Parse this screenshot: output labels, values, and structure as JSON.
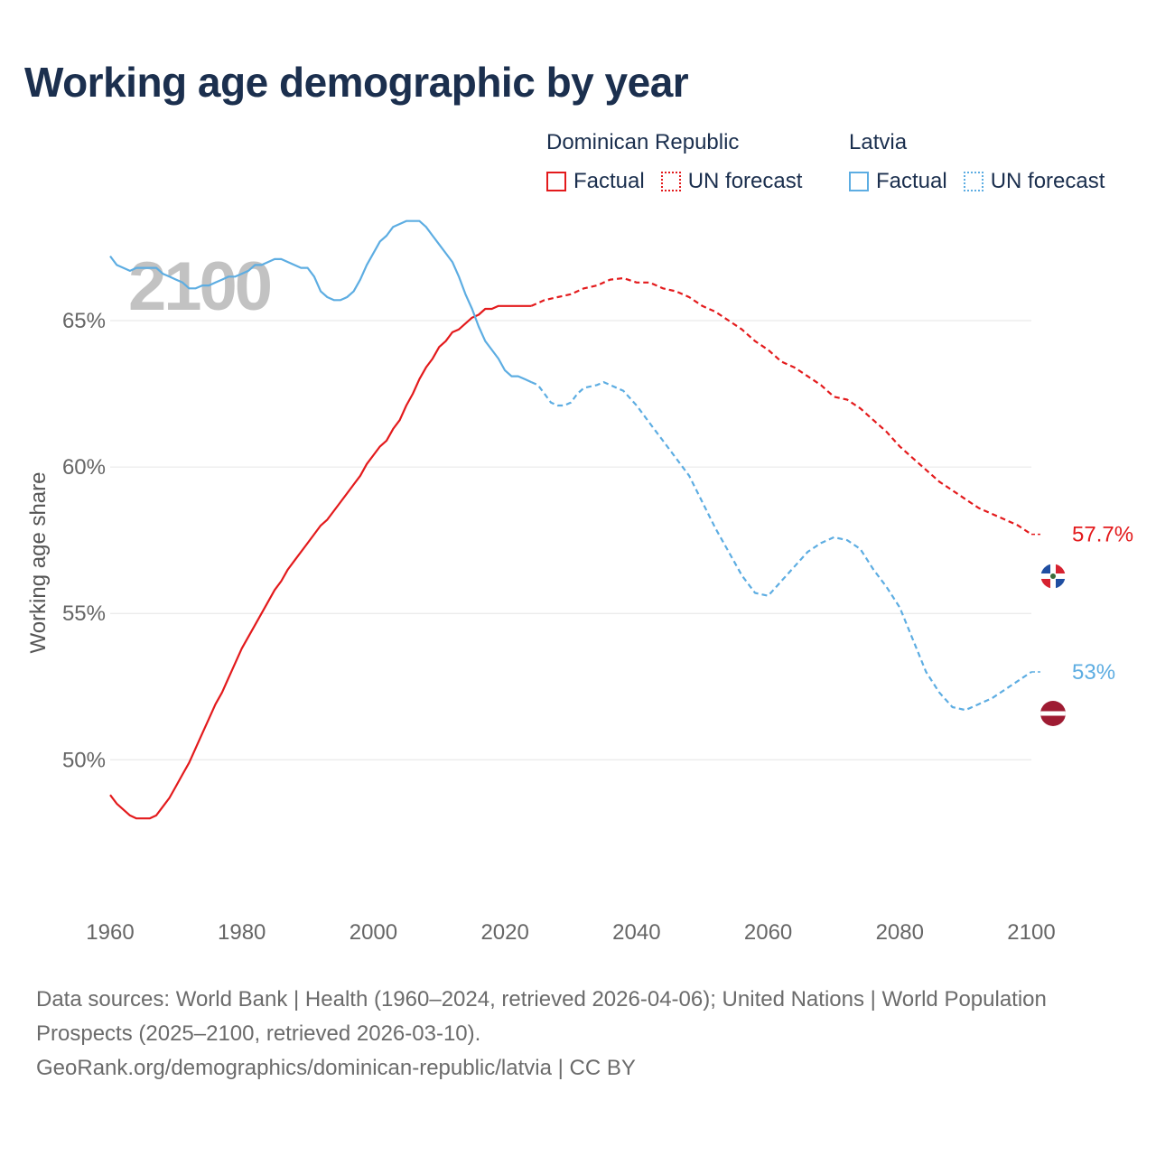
{
  "title": "Working age demographic by year",
  "legend": {
    "groups": [
      {
        "country": "Dominican Republic",
        "factual": "Factual",
        "forecast": "UN forecast",
        "color": "#e31a1c"
      },
      {
        "country": "Latvia",
        "factual": "Factual",
        "forecast": "UN forecast",
        "color": "#5dade2"
      }
    ]
  },
  "year_label": "2100",
  "chart_data": {
    "type": "line",
    "title": "Working age demographic by year",
    "xlabel": "",
    "ylabel": "Working age share",
    "xlim": [
      1960,
      2100
    ],
    "ylim": [
      46,
      68.5
    ],
    "x_ticks": [
      1960,
      1980,
      2000,
      2020,
      2040,
      2060,
      2080,
      2100
    ],
    "y_ticks": [
      50,
      55,
      60,
      65
    ],
    "y_tick_labels": [
      "50%",
      "55%",
      "60%",
      "65%"
    ],
    "factual_end_year": 2024,
    "series": [
      {
        "name": "Dominican Republic",
        "color": "#e31a1c",
        "end_label": "57.7%",
        "points": [
          [
            1960,
            48.8
          ],
          [
            1961,
            48.5
          ],
          [
            1962,
            48.3
          ],
          [
            1963,
            48.1
          ],
          [
            1964,
            48.0
          ],
          [
            1965,
            48.0
          ],
          [
            1966,
            48.0
          ],
          [
            1967,
            48.1
          ],
          [
            1968,
            48.4
          ],
          [
            1969,
            48.7
          ],
          [
            1970,
            49.1
          ],
          [
            1971,
            49.5
          ],
          [
            1972,
            49.9
          ],
          [
            1973,
            50.4
          ],
          [
            1974,
            50.9
          ],
          [
            1975,
            51.4
          ],
          [
            1976,
            51.9
          ],
          [
            1977,
            52.3
          ],
          [
            1978,
            52.8
          ],
          [
            1979,
            53.3
          ],
          [
            1980,
            53.8
          ],
          [
            1982,
            54.6
          ],
          [
            1984,
            55.4
          ],
          [
            1985,
            55.8
          ],
          [
            1986,
            56.1
          ],
          [
            1987,
            56.5
          ],
          [
            1988,
            56.8
          ],
          [
            1990,
            57.4
          ],
          [
            1992,
            58.0
          ],
          [
            1993,
            58.2
          ],
          [
            1995,
            58.8
          ],
          [
            1997,
            59.4
          ],
          [
            1998,
            59.7
          ],
          [
            1999,
            60.1
          ],
          [
            2000,
            60.4
          ],
          [
            2001,
            60.7
          ],
          [
            2002,
            60.9
          ],
          [
            2003,
            61.3
          ],
          [
            2004,
            61.6
          ],
          [
            2005,
            62.1
          ],
          [
            2006,
            62.5
          ],
          [
            2007,
            63.0
          ],
          [
            2008,
            63.4
          ],
          [
            2009,
            63.7
          ],
          [
            2010,
            64.1
          ],
          [
            2011,
            64.3
          ],
          [
            2012,
            64.6
          ],
          [
            2013,
            64.7
          ],
          [
            2014,
            64.9
          ],
          [
            2015,
            65.1
          ],
          [
            2016,
            65.2
          ],
          [
            2017,
            65.4
          ],
          [
            2018,
            65.4
          ],
          [
            2019,
            65.5
          ],
          [
            2020,
            65.5
          ],
          [
            2022,
            65.5
          ],
          [
            2024,
            65.5
          ],
          [
            2026,
            65.7
          ],
          [
            2028,
            65.8
          ],
          [
            2030,
            65.9
          ],
          [
            2032,
            66.1
          ],
          [
            2034,
            66.2
          ],
          [
            2036,
            66.4
          ],
          [
            2038,
            66.45
          ],
          [
            2040,
            66.3
          ],
          [
            2042,
            66.3
          ],
          [
            2044,
            66.1
          ],
          [
            2046,
            66.0
          ],
          [
            2048,
            65.8
          ],
          [
            2050,
            65.5
          ],
          [
            2052,
            65.3
          ],
          [
            2054,
            65.0
          ],
          [
            2056,
            64.7
          ],
          [
            2058,
            64.3
          ],
          [
            2060,
            64.0
          ],
          [
            2062,
            63.6
          ],
          [
            2064,
            63.4
          ],
          [
            2066,
            63.1
          ],
          [
            2068,
            62.8
          ],
          [
            2070,
            62.4
          ],
          [
            2072,
            62.3
          ],
          [
            2074,
            62.0
          ],
          [
            2076,
            61.6
          ],
          [
            2078,
            61.2
          ],
          [
            2080,
            60.7
          ],
          [
            2082,
            60.3
          ],
          [
            2084,
            59.9
          ],
          [
            2086,
            59.5
          ],
          [
            2088,
            59.2
          ],
          [
            2090,
            58.9
          ],
          [
            2092,
            58.6
          ],
          [
            2094,
            58.4
          ],
          [
            2096,
            58.2
          ],
          [
            2098,
            58.0
          ],
          [
            2100,
            57.7
          ]
        ]
      },
      {
        "name": "Latvia",
        "color": "#5dade2",
        "end_label": "53%",
        "points": [
          [
            1960,
            67.2
          ],
          [
            1961,
            66.9
          ],
          [
            1962,
            66.8
          ],
          [
            1963,
            66.7
          ],
          [
            1964,
            66.8
          ],
          [
            1965,
            66.8
          ],
          [
            1966,
            66.8
          ],
          [
            1967,
            66.8
          ],
          [
            1968,
            66.6
          ],
          [
            1969,
            66.5
          ],
          [
            1970,
            66.4
          ],
          [
            1971,
            66.3
          ],
          [
            1972,
            66.1
          ],
          [
            1973,
            66.1
          ],
          [
            1974,
            66.2
          ],
          [
            1975,
            66.2
          ],
          [
            1976,
            66.3
          ],
          [
            1977,
            66.4
          ],
          [
            1978,
            66.5
          ],
          [
            1979,
            66.5
          ],
          [
            1980,
            66.6
          ],
          [
            1981,
            66.7
          ],
          [
            1982,
            66.9
          ],
          [
            1983,
            66.9
          ],
          [
            1984,
            67.0
          ],
          [
            1985,
            67.1
          ],
          [
            1986,
            67.1
          ],
          [
            1987,
            67.0
          ],
          [
            1988,
            66.9
          ],
          [
            1989,
            66.8
          ],
          [
            1990,
            66.8
          ],
          [
            1991,
            66.5
          ],
          [
            1992,
            66.0
          ],
          [
            1993,
            65.8
          ],
          [
            1994,
            65.7
          ],
          [
            1995,
            65.7
          ],
          [
            1996,
            65.8
          ],
          [
            1997,
            66.0
          ],
          [
            1998,
            66.4
          ],
          [
            1999,
            66.9
          ],
          [
            2000,
            67.3
          ],
          [
            2001,
            67.7
          ],
          [
            2002,
            67.9
          ],
          [
            2003,
            68.2
          ],
          [
            2004,
            68.3
          ],
          [
            2005,
            68.4
          ],
          [
            2006,
            68.4
          ],
          [
            2007,
            68.4
          ],
          [
            2008,
            68.2
          ],
          [
            2009,
            67.9
          ],
          [
            2010,
            67.6
          ],
          [
            2011,
            67.3
          ],
          [
            2012,
            67.0
          ],
          [
            2013,
            66.5
          ],
          [
            2014,
            65.9
          ],
          [
            2015,
            65.4
          ],
          [
            2016,
            64.8
          ],
          [
            2017,
            64.3
          ],
          [
            2018,
            64.0
          ],
          [
            2019,
            63.7
          ],
          [
            2020,
            63.3
          ],
          [
            2021,
            63.1
          ],
          [
            2022,
            63.1
          ],
          [
            2023,
            63.0
          ],
          [
            2024,
            62.9
          ],
          [
            2025,
            62.8
          ],
          [
            2026,
            62.5
          ],
          [
            2027,
            62.2
          ],
          [
            2028,
            62.1
          ],
          [
            2029,
            62.1
          ],
          [
            2030,
            62.2
          ],
          [
            2031,
            62.5
          ],
          [
            2032,
            62.7
          ],
          [
            2034,
            62.8
          ],
          [
            2035,
            62.9
          ],
          [
            2036,
            62.8
          ],
          [
            2038,
            62.6
          ],
          [
            2040,
            62.1
          ],
          [
            2042,
            61.5
          ],
          [
            2044,
            60.9
          ],
          [
            2046,
            60.3
          ],
          [
            2048,
            59.7
          ],
          [
            2050,
            58.8
          ],
          [
            2052,
            57.9
          ],
          [
            2054,
            57.1
          ],
          [
            2056,
            56.3
          ],
          [
            2058,
            55.7
          ],
          [
            2060,
            55.6
          ],
          [
            2062,
            56.1
          ],
          [
            2064,
            56.6
          ],
          [
            2066,
            57.1
          ],
          [
            2068,
            57.4
          ],
          [
            2070,
            57.6
          ],
          [
            2072,
            57.5
          ],
          [
            2074,
            57.2
          ],
          [
            2076,
            56.5
          ],
          [
            2078,
            55.9
          ],
          [
            2080,
            55.2
          ],
          [
            2082,
            54.1
          ],
          [
            2084,
            53.0
          ],
          [
            2086,
            52.3
          ],
          [
            2088,
            51.8
          ],
          [
            2090,
            51.7
          ],
          [
            2092,
            51.9
          ],
          [
            2094,
            52.1
          ],
          [
            2096,
            52.4
          ],
          [
            2098,
            52.7
          ],
          [
            2100,
            53.0
          ]
        ]
      }
    ]
  },
  "source": {
    "line1": "Data sources: World Bank | Health (1960–2024, retrieved 2026-04-06); United Nations | World Population Prospects (2025–2100, retrieved 2026-03-10).",
    "line2": "GeoRank.org/demographics/dominican-republic/latvia | CC BY"
  }
}
